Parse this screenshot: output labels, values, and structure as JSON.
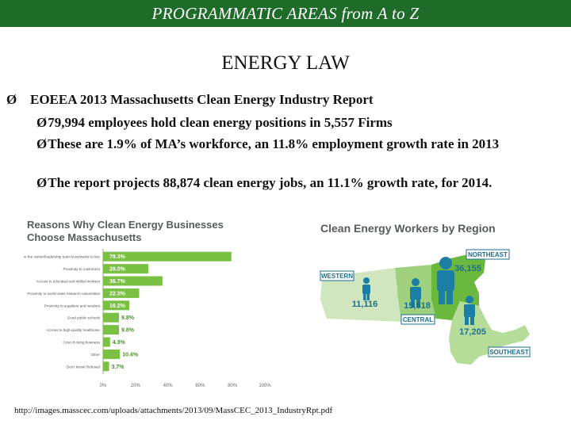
{
  "header": {
    "banner": "PROGRAMMATIC AREAS from A to Z",
    "title": "ENERGY LAW"
  },
  "bullets": {
    "main_marker": "Ø",
    "main": "EOEEA 2013 Massachusetts Clean Energy Industry Report",
    "sub_marker": "Ø",
    "sub": [
      "79,994 employees hold clean energy positions in 5,557 Firms",
      "These are 1.9% of MA’s workforce, an 11.8% employment growth rate in 2013",
      "The report projects 88,874 clean energy jobs, an 11.1% growth rate, for 2014."
    ]
  },
  "chart_data": [
    {
      "type": "bar",
      "orientation": "horizontal",
      "title": "Reasons Why Clean Energy Businesses Choose Massachusetts",
      "categories": [
        "It is where the owner/leadership team lives/wants to live",
        "Proximity to customers",
        "Access to educated and skilled workers",
        "Proximity to world-class research universities",
        "Proximity to suppliers and vendors",
        "Good public schools",
        "Access to high-quality healthcare",
        "Cost of doing business",
        "Other",
        "Don't know/ Refused"
      ],
      "values": [
        79.3,
        28.0,
        36.7,
        22.3,
        16.2,
        9.8,
        9.8,
        4.3,
        10.4,
        3.7
      ],
      "value_labels": [
        "79.3%",
        "28.0%",
        "36.7%",
        "22.3%",
        "16.2%",
        "9.8%",
        "9.8%",
        "4.3%",
        "10.4%",
        "3.7%"
      ],
      "xticks": [
        "0%",
        "20%",
        "40%",
        "60%",
        "80%",
        "100%"
      ],
      "xlim": [
        0,
        100
      ],
      "bar_color": "#7ac143"
    },
    {
      "type": "map",
      "title": "Clean Energy Workers by Region",
      "regions": [
        {
          "name": "WESTERN",
          "workers": "11,116"
        },
        {
          "name": "CENTRAL",
          "workers": "15,518"
        },
        {
          "name": "NORTHEAST",
          "workers": "36,155"
        },
        {
          "name": "SOUTHEAST",
          "workers": "17,205"
        }
      ],
      "colors": {
        "western": "#cfe6bf",
        "central": "#9fd07e",
        "northeast": "#6bb83e",
        "southeast": "#b6dc9a",
        "label": "#1b6f8f",
        "person": "#1b7ea5"
      }
    }
  ],
  "source": "http://images.masscec.com/uploads/attachments/2013/09/MassCEC_2013_IndustryRpt.pdf"
}
